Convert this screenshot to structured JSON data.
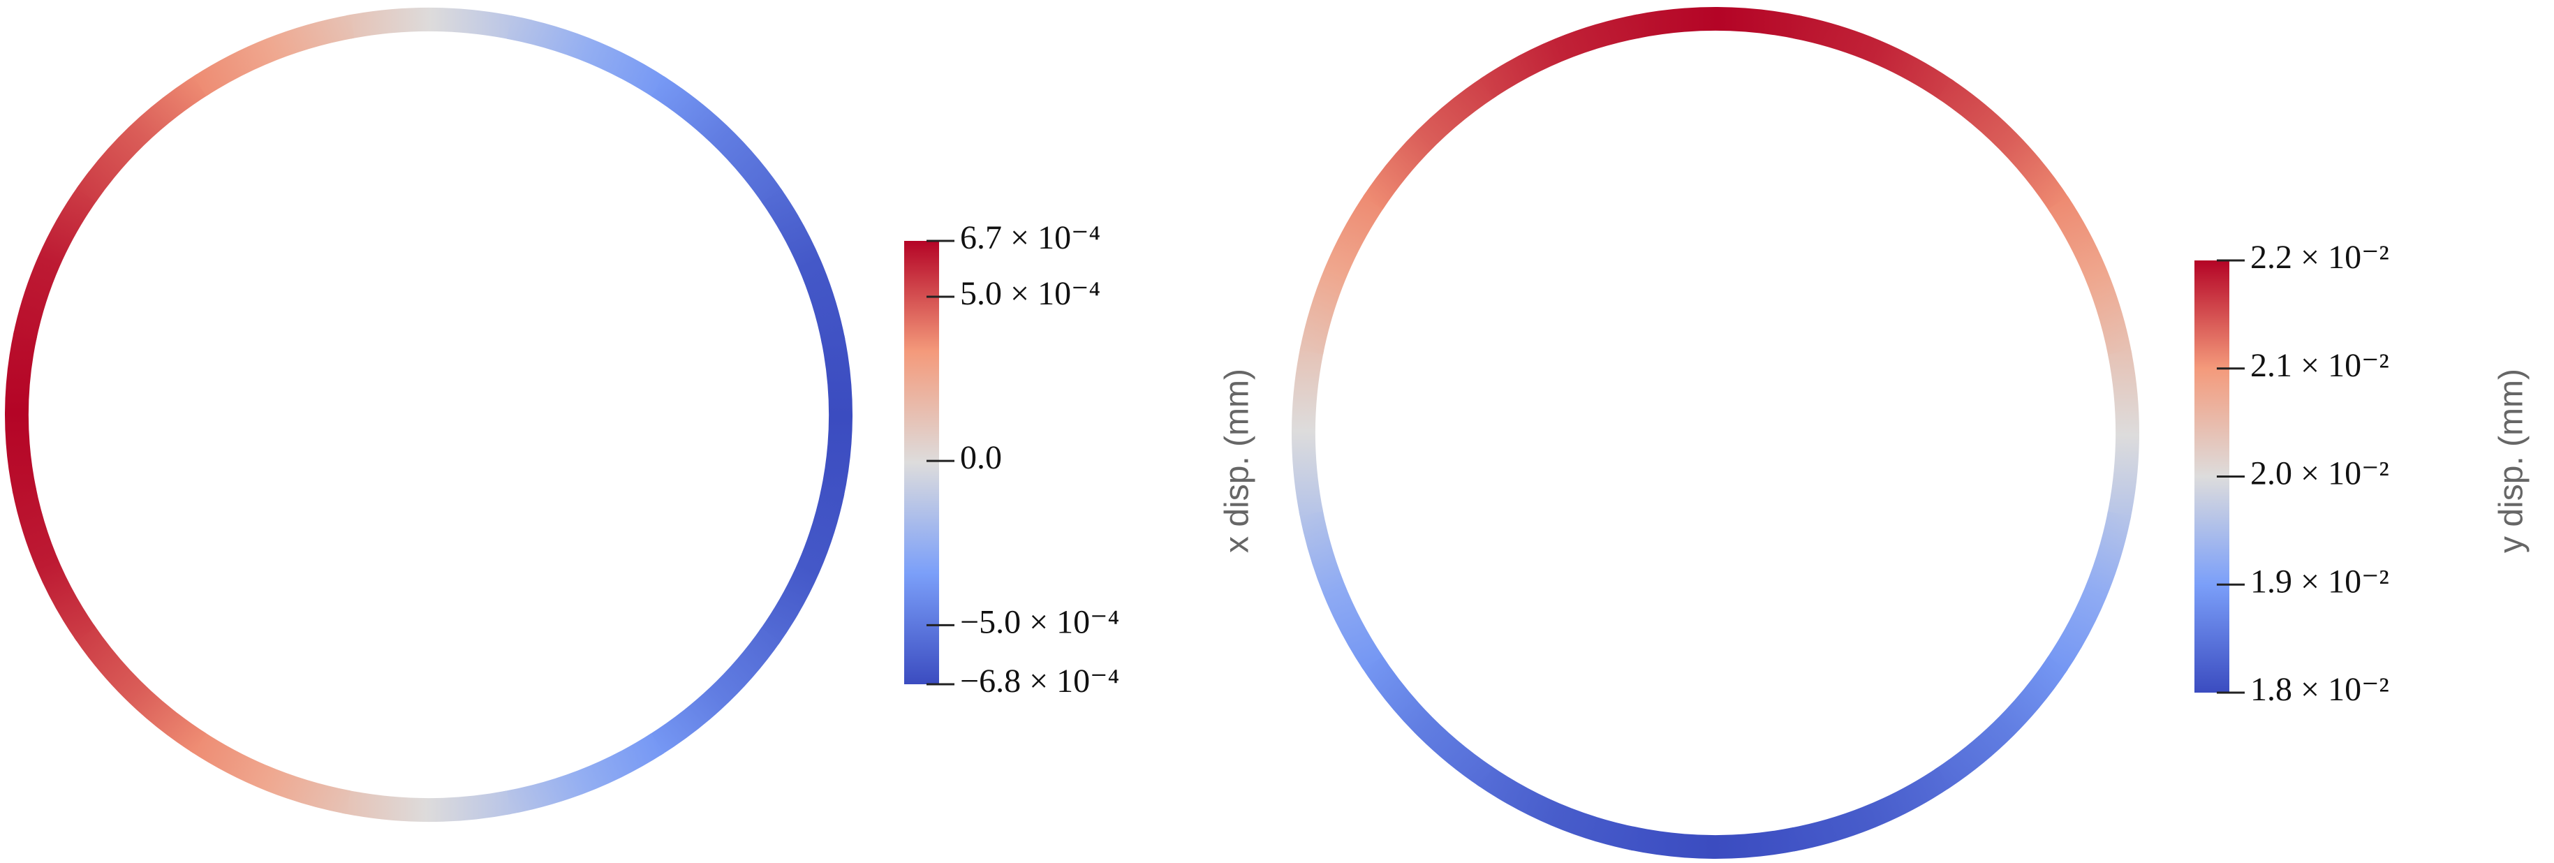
{
  "chart_data": [
    {
      "type": "colormap",
      "axis_label": "x disp. (mm)",
      "colormap": [
        "#3b4cc0",
        "#7b9ff9",
        "#dddcdc",
        "#f49a7b",
        "#b40426"
      ],
      "clim": [
        -0.00068,
        0.00067
      ],
      "ticks": [
        {
          "value": 0.00067,
          "label": "6.7 × 10⁻⁴"
        },
        {
          "value": 0.0005,
          "label": "5.0 × 10⁻⁴"
        },
        {
          "value": 0,
          "label": "0.0"
        },
        {
          "value": -0.0005,
          "label": "−5.0 × 10⁻⁴"
        },
        {
          "value": -0.00068,
          "label": "−6.8 × 10⁻⁴"
        }
      ],
      "values": [
        0,
        -0.00026,
        -0.00048,
        -0.00063,
        -0.00068,
        -0.00063,
        -0.00048,
        -0.00026,
        0,
        0.00026,
        0.00047,
        0.00062,
        0.00067,
        0.00062,
        0.00047,
        0.00026
      ]
    },
    {
      "type": "colormap",
      "axis_label": "y disp. (mm)",
      "colormap": [
        "#3b4cc0",
        "#7b9ff9",
        "#dddcdc",
        "#f49a7b",
        "#b40426"
      ],
      "clim": [
        0.018,
        0.022
      ],
      "ticks": [
        {
          "value": 0.022,
          "label": "2.2 × 10⁻²"
        },
        {
          "value": 0.021,
          "label": "2.1 × 10⁻²"
        },
        {
          "value": 0.02,
          "label": "2.0 × 10⁻²"
        },
        {
          "value": 0.019,
          "label": "1.9 × 10⁻²"
        },
        {
          "value": 0.018,
          "label": "1.8 × 10⁻²"
        }
      ],
      "values": [
        0.022,
        0.0218,
        0.0214,
        0.0208,
        0.02,
        0.0192,
        0.0186,
        0.0182,
        0.018,
        0.0182,
        0.0186,
        0.0192,
        0.02,
        0.0208,
        0.0214,
        0.0218
      ]
    }
  ]
}
